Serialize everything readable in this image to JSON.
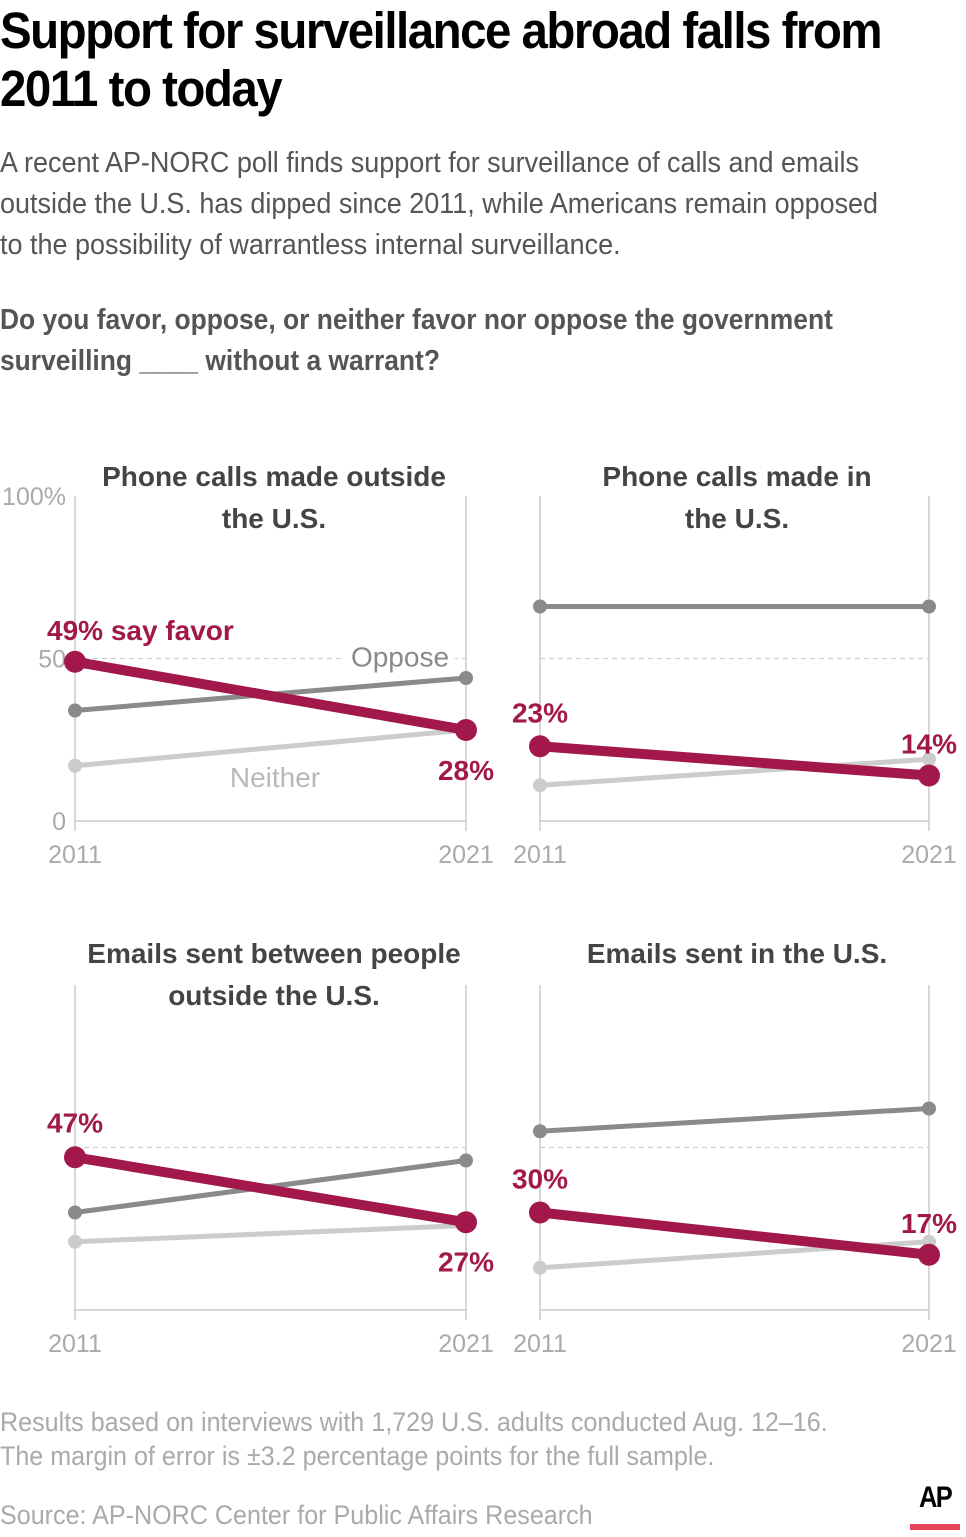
{
  "header": {
    "title_lines": [
      "Support for surveillance abroad falls from",
      "2011 to today"
    ],
    "dek_lines": [
      "A recent AP-NORC poll finds support for surveillance of calls and emails",
      "outside the U.S. has dipped since 2011, while Americans remain opposed",
      "to the possibility of warrantless internal surveillance."
    ],
    "question_lines": [
      "Do you favor, oppose, or neither favor nor oppose the government",
      "surveilling ____ without a warrant?"
    ]
  },
  "footer": {
    "note_lines": [
      "Results based on interviews with 1,729 U.S. adults conducted Aug. 12–16.",
      "The margin of error is ±3.2 percentage points for the full sample."
    ],
    "source": "Source:  AP-NORC Center for Public Affairs Research",
    "logo_text": "AP",
    "logo_icon": "ap-logo-icon"
  },
  "colors": {
    "favor": "#a3184a",
    "oppose": "#8a8a8a",
    "neither": "#cccccc",
    "axis": "#cccccc",
    "logo_bar": "#e8435a"
  },
  "chart_data": [
    {
      "type": "line",
      "title": "Phone calls made outside the U.S.",
      "title_lines": [
        "Phone calls made outside",
        "the U.S."
      ],
      "x": [
        "2011",
        "2021"
      ],
      "ylim": [
        0,
        100
      ],
      "yticks": [
        "100%",
        "50",
        "0"
      ],
      "grid": "dashed line at 50",
      "series": [
        {
          "name": "Favor",
          "values": [
            49,
            28
          ],
          "labels": [
            "49% say favor",
            "28%"
          ]
        },
        {
          "name": "Oppose",
          "values": [
            34,
            44
          ],
          "labels": [
            "Oppose"
          ]
        },
        {
          "name": "Neither",
          "values": [
            17,
            28
          ],
          "labels": [
            "Neither"
          ]
        }
      ]
    },
    {
      "type": "line",
      "title": "Phone calls made in the U.S.",
      "title_lines": [
        "Phone calls made in",
        "the U.S."
      ],
      "x": [
        "2011",
        "2021"
      ],
      "ylim": [
        0,
        100
      ],
      "series": [
        {
          "name": "Favor",
          "values": [
            23,
            14
          ],
          "labels": [
            "23%",
            "14%"
          ]
        },
        {
          "name": "Oppose",
          "values": [
            66,
            66
          ]
        },
        {
          "name": "Neither",
          "values": [
            11,
            19
          ]
        }
      ]
    },
    {
      "type": "line",
      "title": "Emails sent between people outside the U.S.",
      "title_lines": [
        "Emails sent between people",
        "outside the U.S."
      ],
      "x": [
        "2011",
        "2021"
      ],
      "ylim": [
        0,
        100
      ],
      "series": [
        {
          "name": "Favor",
          "values": [
            47,
            27
          ],
          "labels": [
            "47%",
            "27%"
          ]
        },
        {
          "name": "Oppose",
          "values": [
            30,
            46
          ]
        },
        {
          "name": "Neither",
          "values": [
            21,
            26
          ]
        }
      ]
    },
    {
      "type": "line",
      "title": "Emails sent in the U.S.",
      "title_lines": [
        "Emails sent in the U.S."
      ],
      "x": [
        "2011",
        "2021"
      ],
      "ylim": [
        0,
        100
      ],
      "series": [
        {
          "name": "Favor",
          "values": [
            30,
            17
          ],
          "labels": [
            "30%",
            "17%"
          ]
        },
        {
          "name": "Oppose",
          "values": [
            55,
            62
          ]
        },
        {
          "name": "Neither",
          "values": [
            13,
            21
          ]
        }
      ]
    }
  ]
}
